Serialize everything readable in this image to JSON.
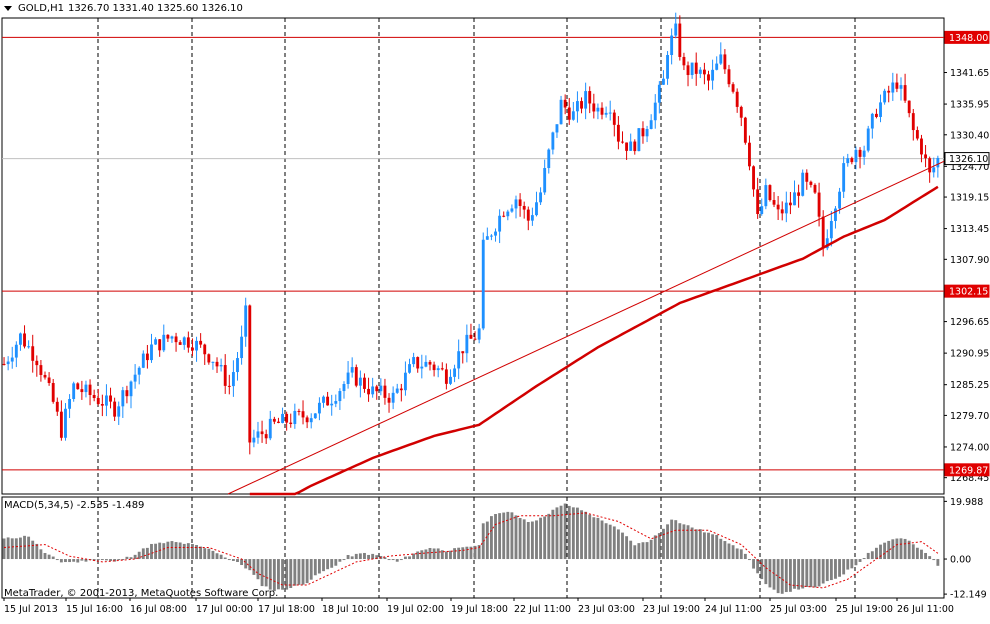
{
  "header": {
    "symbol": "GOLD,H1",
    "ohlc": "1326.70 1331.40 1325.60 1326.10"
  },
  "macd": {
    "label": "MACD(5,34,5) -2.535 -1.489"
  },
  "copyright": "MetaTrader, © 2001-2013, MetaQuotes Software Corp.",
  "colors": {
    "bull": "#1e90ff",
    "bear": "#e00000",
    "line": "#d10000",
    "grid": "#000000",
    "macd_hist": "#808080",
    "signal": "#e00000"
  },
  "chart_data": {
    "type": "candlestick",
    "price_axis": {
      "ticks": [
        "1341.65",
        "1335.95",
        "1330.40",
        "1324.70",
        "1319.15",
        "1313.45",
        "1307.90",
        "1296.65",
        "1290.95",
        "1285.25",
        "1279.70",
        "1274.00",
        "1268.45"
      ],
      "range": [
        1265.5,
        1351.5
      ]
    },
    "price_labels": [
      {
        "text": "1348.00",
        "value": 1348.0,
        "style": "level"
      },
      {
        "text": "1326.10",
        "value": 1326.1,
        "style": "current"
      },
      {
        "text": "1302.15",
        "value": 1302.15,
        "style": "level"
      },
      {
        "text": "1269.87",
        "value": 1269.87,
        "style": "level"
      }
    ],
    "horizontal_levels": [
      1348.0,
      1302.15,
      1269.87
    ],
    "current_price": 1326.1,
    "trendline": {
      "from_bar": 0,
      "from_price": 1268.0,
      "to_bar": 1,
      "to_price": 1325.0
    },
    "time_axis": [
      "15 Jul 2013",
      "15 Jul 16:00",
      "16 Jul 08:00",
      "17 Jul 00:00",
      "17 Jul 18:00",
      "18 Jul 10:00",
      "19 Jul 02:00",
      "19 Jul 18:00",
      "22 Jul 11:00",
      "23 Jul 03:00",
      "23 Jul 19:00",
      "24 Jul 11:00",
      "25 Jul 03:00",
      "25 Jul 19:00",
      "26 Jul 11:00"
    ],
    "close_path": [
      [
        0,
        1289
      ],
      [
        4,
        1294
      ],
      [
        8,
        1290
      ],
      [
        12,
        1282
      ],
      [
        14,
        1277
      ],
      [
        17,
        1285
      ],
      [
        22,
        1283
      ],
      [
        27,
        1281
      ],
      [
        31,
        1286
      ],
      [
        36,
        1292
      ],
      [
        41,
        1294
      ],
      [
        46,
        1293
      ],
      [
        51,
        1290
      ],
      [
        55,
        1285
      ],
      [
        58,
        1293
      ],
      [
        59,
        1298
      ],
      [
        60,
        1275
      ],
      [
        62,
        1276
      ],
      [
        66,
        1278
      ],
      [
        70,
        1279
      ],
      [
        75,
        1280
      ],
      [
        80,
        1283
      ],
      [
        85,
        1287
      ],
      [
        90,
        1284
      ],
      [
        95,
        1283
      ],
      [
        100,
        1289
      ],
      [
        104,
        1289
      ],
      [
        108,
        1287
      ],
      [
        112,
        1292
      ],
      [
        115,
        1294
      ],
      [
        116,
        1295
      ],
      [
        117,
        1310
      ],
      [
        119,
        1313
      ],
      [
        122,
        1317
      ],
      [
        125,
        1319
      ],
      [
        128,
        1315
      ],
      [
        131,
        1320
      ],
      [
        133,
        1327
      ],
      [
        136,
        1336
      ],
      [
        139,
        1334
      ],
      [
        142,
        1337
      ],
      [
        145,
        1335
      ],
      [
        148,
        1336
      ],
      [
        150,
        1330
      ],
      [
        153,
        1328
      ],
      [
        156,
        1331
      ],
      [
        159,
        1336
      ],
      [
        161,
        1340
      ],
      [
        162,
        1346
      ],
      [
        164,
        1349
      ],
      [
        166,
        1342
      ],
      [
        169,
        1342
      ],
      [
        172,
        1340
      ],
      [
        175,
        1344
      ],
      [
        178,
        1339
      ],
      [
        180,
        1334
      ],
      [
        182,
        1326
      ],
      [
        184,
        1315
      ],
      [
        186,
        1320
      ],
      [
        189,
        1316
      ],
      [
        192,
        1318
      ],
      [
        195,
        1322
      ],
      [
        198,
        1319
      ],
      [
        200,
        1310
      ],
      [
        202,
        1316
      ],
      [
        205,
        1324
      ],
      [
        208,
        1328
      ],
      [
        210,
        1328
      ],
      [
        213,
        1335
      ],
      [
        216,
        1338
      ],
      [
        218,
        1340
      ],
      [
        220,
        1336
      ],
      [
        222,
        1331
      ],
      [
        224,
        1328
      ],
      [
        226,
        1323
      ],
      [
        228,
        1326
      ]
    ],
    "moving_average": [
      [
        60,
        1261
      ],
      [
        75,
        1267
      ],
      [
        90,
        1272
      ],
      [
        105,
        1276
      ],
      [
        116,
        1278
      ],
      [
        130,
        1285
      ],
      [
        145,
        1292
      ],
      [
        155,
        1296
      ],
      [
        165,
        1300
      ],
      [
        180,
        1304
      ],
      [
        195,
        1308
      ],
      [
        205,
        1312
      ],
      [
        215,
        1315
      ],
      [
        228,
        1321
      ]
    ],
    "macd": {
      "ticks": [
        "19.988",
        "0.00",
        "-12.149"
      ],
      "range": [
        -13.5,
        21.5
      ],
      "path": [
        [
          0,
          7
        ],
        [
          6,
          8
        ],
        [
          10,
          2
        ],
        [
          14,
          -1
        ],
        [
          18,
          -1
        ],
        [
          23,
          0
        ],
        [
          27,
          -1
        ],
        [
          31,
          1
        ],
        [
          36,
          5
        ],
        [
          41,
          6
        ],
        [
          46,
          5
        ],
        [
          51,
          3
        ],
        [
          55,
          0
        ],
        [
          58,
          -2
        ],
        [
          60,
          -4
        ],
        [
          63,
          -9
        ],
        [
          66,
          -11
        ],
        [
          70,
          -10
        ],
        [
          74,
          -8
        ],
        [
          77,
          -5
        ],
        [
          80,
          -3
        ],
        [
          84,
          1
        ],
        [
          88,
          2
        ],
        [
          92,
          1
        ],
        [
          96,
          -1
        ],
        [
          100,
          2
        ],
        [
          104,
          4
        ],
        [
          108,
          3
        ],
        [
          113,
          4
        ],
        [
          116,
          5
        ],
        [
          117,
          12
        ],
        [
          120,
          16
        ],
        [
          124,
          16
        ],
        [
          128,
          13
        ],
        [
          131,
          14
        ],
        [
          134,
          17
        ],
        [
          137,
          19
        ],
        [
          141,
          17
        ],
        [
          145,
          14
        ],
        [
          148,
          12
        ],
        [
          151,
          9
        ],
        [
          154,
          5
        ],
        [
          157,
          6
        ],
        [
          160,
          9
        ],
        [
          163,
          14
        ],
        [
          166,
          12
        ],
        [
          170,
          10
        ],
        [
          174,
          8
        ],
        [
          178,
          5
        ],
        [
          181,
          2
        ],
        [
          183,
          -3
        ],
        [
          186,
          -9
        ],
        [
          189,
          -12
        ],
        [
          192,
          -11
        ],
        [
          195,
          -10
        ],
        [
          198,
          -10
        ],
        [
          201,
          -8
        ],
        [
          204,
          -6
        ],
        [
          208,
          -2
        ],
        [
          211,
          2
        ],
        [
          214,
          5
        ],
        [
          217,
          7
        ],
        [
          220,
          7
        ],
        [
          223,
          4
        ],
        [
          226,
          1
        ],
        [
          228,
          -2
        ]
      ],
      "signal_path": [
        [
          0,
          4
        ],
        [
          10,
          5
        ],
        [
          16,
          1
        ],
        [
          24,
          -1
        ],
        [
          32,
          0
        ],
        [
          40,
          4
        ],
        [
          50,
          4
        ],
        [
          58,
          0
        ],
        [
          62,
          -5
        ],
        [
          68,
          -9
        ],
        [
          74,
          -9
        ],
        [
          80,
          -5
        ],
        [
          86,
          -1
        ],
        [
          94,
          1
        ],
        [
          102,
          2
        ],
        [
          112,
          3
        ],
        [
          116,
          4
        ],
        [
          120,
          12
        ],
        [
          126,
          15
        ],
        [
          134,
          15
        ],
        [
          142,
          16
        ],
        [
          150,
          13
        ],
        [
          158,
          7
        ],
        [
          164,
          10
        ],
        [
          172,
          10
        ],
        [
          180,
          5
        ],
        [
          186,
          -3
        ],
        [
          192,
          -9
        ],
        [
          200,
          -10
        ],
        [
          206,
          -7
        ],
        [
          212,
          -1
        ],
        [
          218,
          5
        ],
        [
          224,
          6
        ],
        [
          228,
          2
        ]
      ]
    }
  }
}
